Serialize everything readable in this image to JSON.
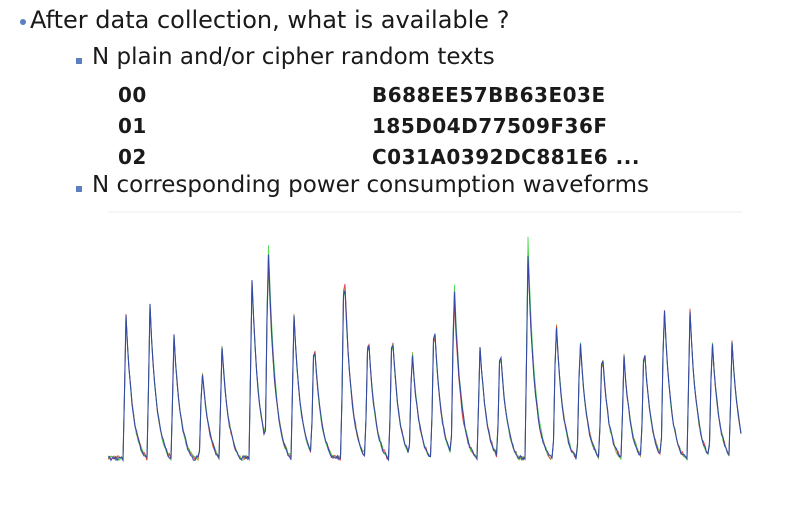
{
  "slide": {
    "bullet1": "After data collection, what is available ?",
    "bullet2": "N plain and/or cipher random texts",
    "rows": [
      {
        "index": "00",
        "hex": "B688EE57BB63E03E"
      },
      {
        "index": "01",
        "hex": "185D04D77509F36F"
      },
      {
        "index": "02",
        "hex": "C031A0392DC881E6 ..."
      }
    ],
    "bullet3": "N corresponding power consumption waveforms"
  },
  "colors": {
    "bullet": "#5b7fc0",
    "waveform_main": "#2f3fb0",
    "waveform_green": "#39d43f",
    "waveform_red": "#d9252a",
    "waveform_olive": "#9a9a2a"
  }
}
